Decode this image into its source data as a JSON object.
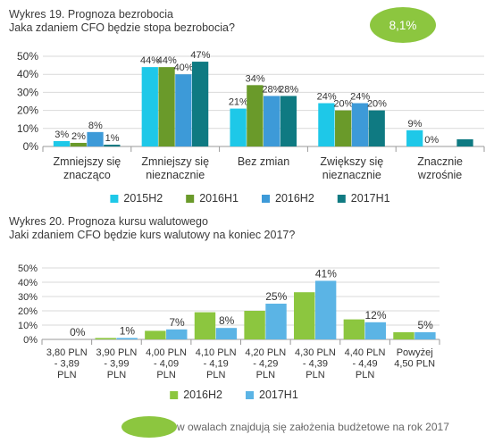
{
  "chart1_header": {
    "line1": "Wykres 19. Prognoza bezrobocia",
    "line2": "Jaka zdaniem CFO będzie stopa bezrobocia?"
  },
  "badge": {
    "text": "8,1%"
  },
  "chart2_header": {
    "line1": "Wykres 20. Prognoza kursu walutowego",
    "line2": "Jaki zdaniem CFO będzie kurs walutowy na koniec 2017?"
  },
  "footnote": {
    "text": "w owalach znajdują się założenia budżetowe na rok 2017"
  },
  "chart_data": [
    {
      "type": "bar",
      "title": "Wykres 19. Prognoza bezrobocia",
      "subtitle": "Jaka zdaniem CFO będzie stopa bezrobocia?",
      "categories": [
        [
          "Zmniejszy się",
          "znacząco"
        ],
        [
          "Zmniejszy się",
          "nieznacznie"
        ],
        [
          "Bez zmian"
        ],
        [
          "Zwiększy się",
          "nieznacznie"
        ],
        [
          "Znacznie",
          "wzrośnie"
        ]
      ],
      "series": [
        {
          "name": "2015H2",
          "color": "#1ec8e8",
          "values": [
            3,
            44,
            21,
            24,
            9
          ],
          "labels": [
            "3%",
            "44%",
            "21%",
            "24%",
            "9%"
          ]
        },
        {
          "name": "2016H1",
          "color": "#6a9a2a",
          "values": [
            2,
            44,
            34,
            20,
            0
          ],
          "labels": [
            "2%",
            "44%",
            "34%",
            "20%",
            "0%"
          ]
        },
        {
          "name": "2016H2",
          "color": "#3d9ad8",
          "values": [
            8,
            40,
            28,
            24,
            0
          ],
          "labels": [
            "8%",
            "40%",
            "28%",
            "24%",
            ""
          ]
        },
        {
          "name": "2017H1",
          "color": "#0f7a82",
          "values": [
            1,
            47,
            28,
            20,
            4
          ],
          "labels": [
            "1%",
            "47%",
            "28%",
            "20%",
            ""
          ]
        }
      ],
      "yticks": [
        "0%",
        "10%",
        "20%",
        "30%",
        "40%",
        "50%"
      ],
      "ylim": [
        0,
        50
      ],
      "grid": true,
      "legend": "bottom"
    },
    {
      "type": "bar",
      "title": "Wykres 20. Prognoza kursu walutowego",
      "subtitle": "Jaki zdaniem CFO będzie kurs walutowy na koniec 2017?",
      "categories": [
        [
          "3,80 PLN",
          "- 3,89",
          "PLN"
        ],
        [
          "3,90 PLN",
          "- 3,99",
          "PLN"
        ],
        [
          "4,00 PLN",
          "- 4,09",
          "PLN"
        ],
        [
          "4,10 PLN",
          "- 4,19",
          "PLN"
        ],
        [
          "4,20 PLN",
          "- 4,29",
          "PLN"
        ],
        [
          "4,30 PLN",
          "- 4,39",
          "PLN"
        ],
        [
          "4,40 PLN",
          "- 4,49",
          "PLN"
        ],
        [
          "Powyżej",
          "4,50 PLN"
        ]
      ],
      "series": [
        {
          "name": "2016H2",
          "color": "#8cc63f",
          "values": [
            0,
            1,
            6,
            19,
            20,
            33,
            14,
            5
          ],
          "labels": [
            "",
            "",
            "",
            "",
            "",
            "",
            "",
            ""
          ]
        },
        {
          "name": "2017H1",
          "color": "#5bb4e5",
          "values": [
            0,
            1,
            7,
            8,
            25,
            41,
            12,
            5
          ],
          "labels": [
            "0%",
            "1%",
            "7%",
            "8%",
            "25%",
            "41%",
            "12%",
            "5%"
          ]
        }
      ],
      "yticks": [
        "0%",
        "10%",
        "20%",
        "30%",
        "40%",
        "50%"
      ],
      "ylim": [
        0,
        50
      ],
      "grid": true,
      "legend": "bottom"
    }
  ]
}
